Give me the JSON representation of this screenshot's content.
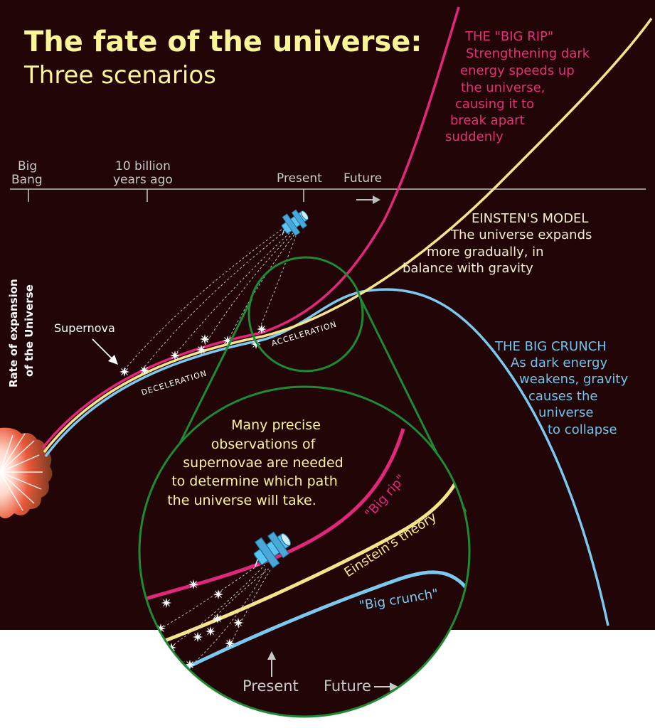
{
  "title": "The fate of the universe:",
  "subtitle": "Three scenarios",
  "timeline": {
    "big_bang": [
      "Big",
      "Bang"
    ],
    "ten_billion": [
      "10 billion",
      "years ago"
    ],
    "present": "Present",
    "future": "Future"
  },
  "y_axis_label": [
    "Rate of expansion",
    "of the Universe"
  ],
  "supernova_label": "Supernova",
  "deceleration_label": "DECELERATION",
  "acceleration_label": "ACCELERATION",
  "big_rip": {
    "lines": [
      "THE \"BIG RIP\"",
      "Strengthening dark",
      "energy speeds up",
      "the universe,",
      "causing it to",
      "break apart",
      "suddenly"
    ]
  },
  "einstein": {
    "lines": [
      "EINSTEN'S MODEL",
      "The universe expands",
      "more gradually, in",
      "balance with gravity"
    ]
  },
  "big_crunch": {
    "lines": [
      "THE BIG CRUNCH",
      "As dark energy",
      "weakens, gravity",
      "causes the",
      "universe",
      "to collapse"
    ]
  },
  "inset": {
    "note_lines": [
      "Many precise",
      "observations of",
      "supernovae are needed",
      "to determine which path",
      "the universe will take."
    ],
    "big_rip_label": "\"Big rip\"",
    "einstein_label": "Einstein's theory",
    "big_crunch_label": "\"Big crunch\"",
    "present": "Present",
    "future": "Future"
  },
  "colors": {
    "background": "#220607",
    "big_rip": "#e0287a",
    "einstein": "#f6e48c",
    "big_crunch": "#7cc8ef",
    "magnifier": "#1f8a33",
    "title": "#fbf59a"
  }
}
